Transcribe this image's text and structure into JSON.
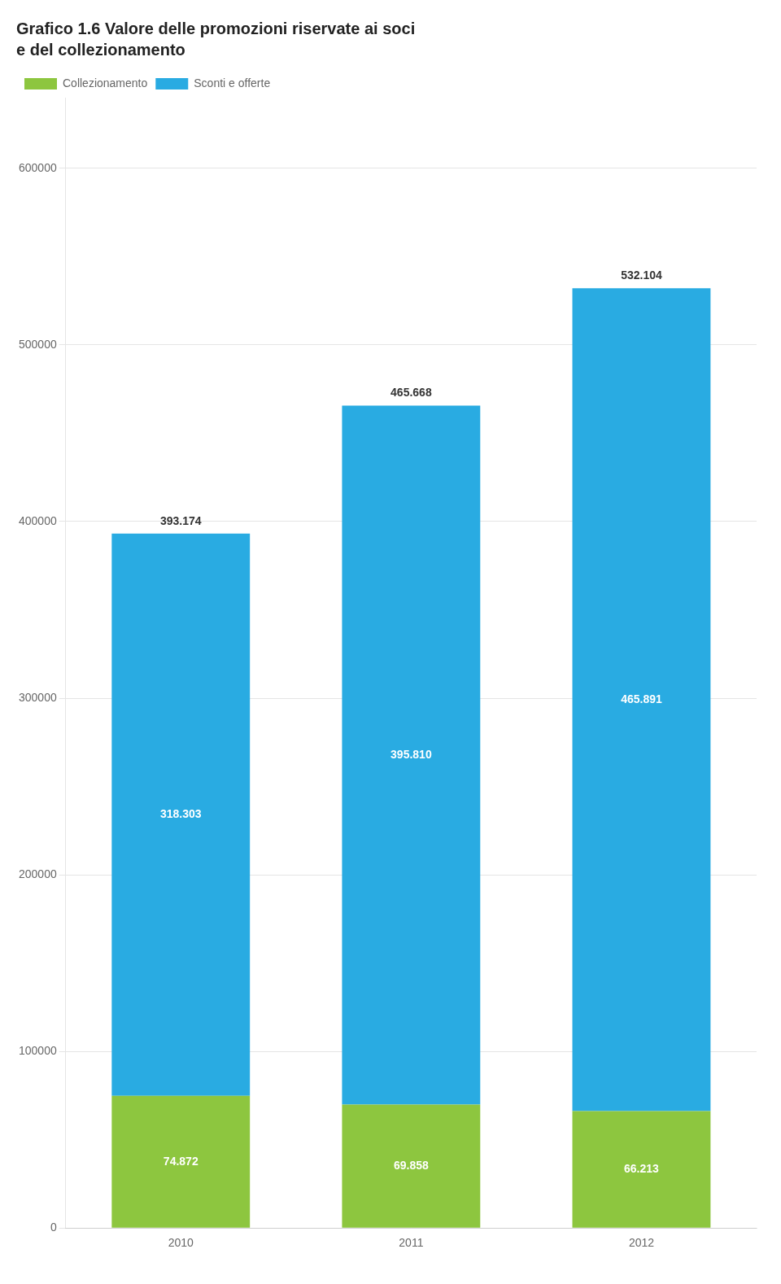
{
  "chart_data": {
    "type": "bar",
    "title": "Grafico 1.6 Valore delle promozioni riservate ai soci",
    "subtitle": "e del collezionamento",
    "categories": [
      "2010",
      "2011",
      "2012"
    ],
    "series": [
      {
        "name": "Collezionamento",
        "color": "#8dc63f",
        "values": [
          74872,
          69858,
          66213
        ],
        "value_labels": [
          "74.872",
          "69.858",
          "66.213"
        ]
      },
      {
        "name": "Sconti e offerte",
        "color": "#29abe2",
        "values": [
          318303,
          395810,
          465891
        ],
        "value_labels": [
          "318.303",
          "395.810",
          "465.891"
        ]
      }
    ],
    "totals": [
      393174,
      465668,
      532104
    ],
    "total_labels": [
      "393.174",
      "465.668",
      "532.104"
    ],
    "stacked": true,
    "data_labels": true,
    "ylim": [
      0,
      640000
    ],
    "yticks": [
      0,
      100000,
      200000,
      300000,
      400000,
      500000,
      600000
    ],
    "grid": true,
    "legend": "upper left"
  }
}
